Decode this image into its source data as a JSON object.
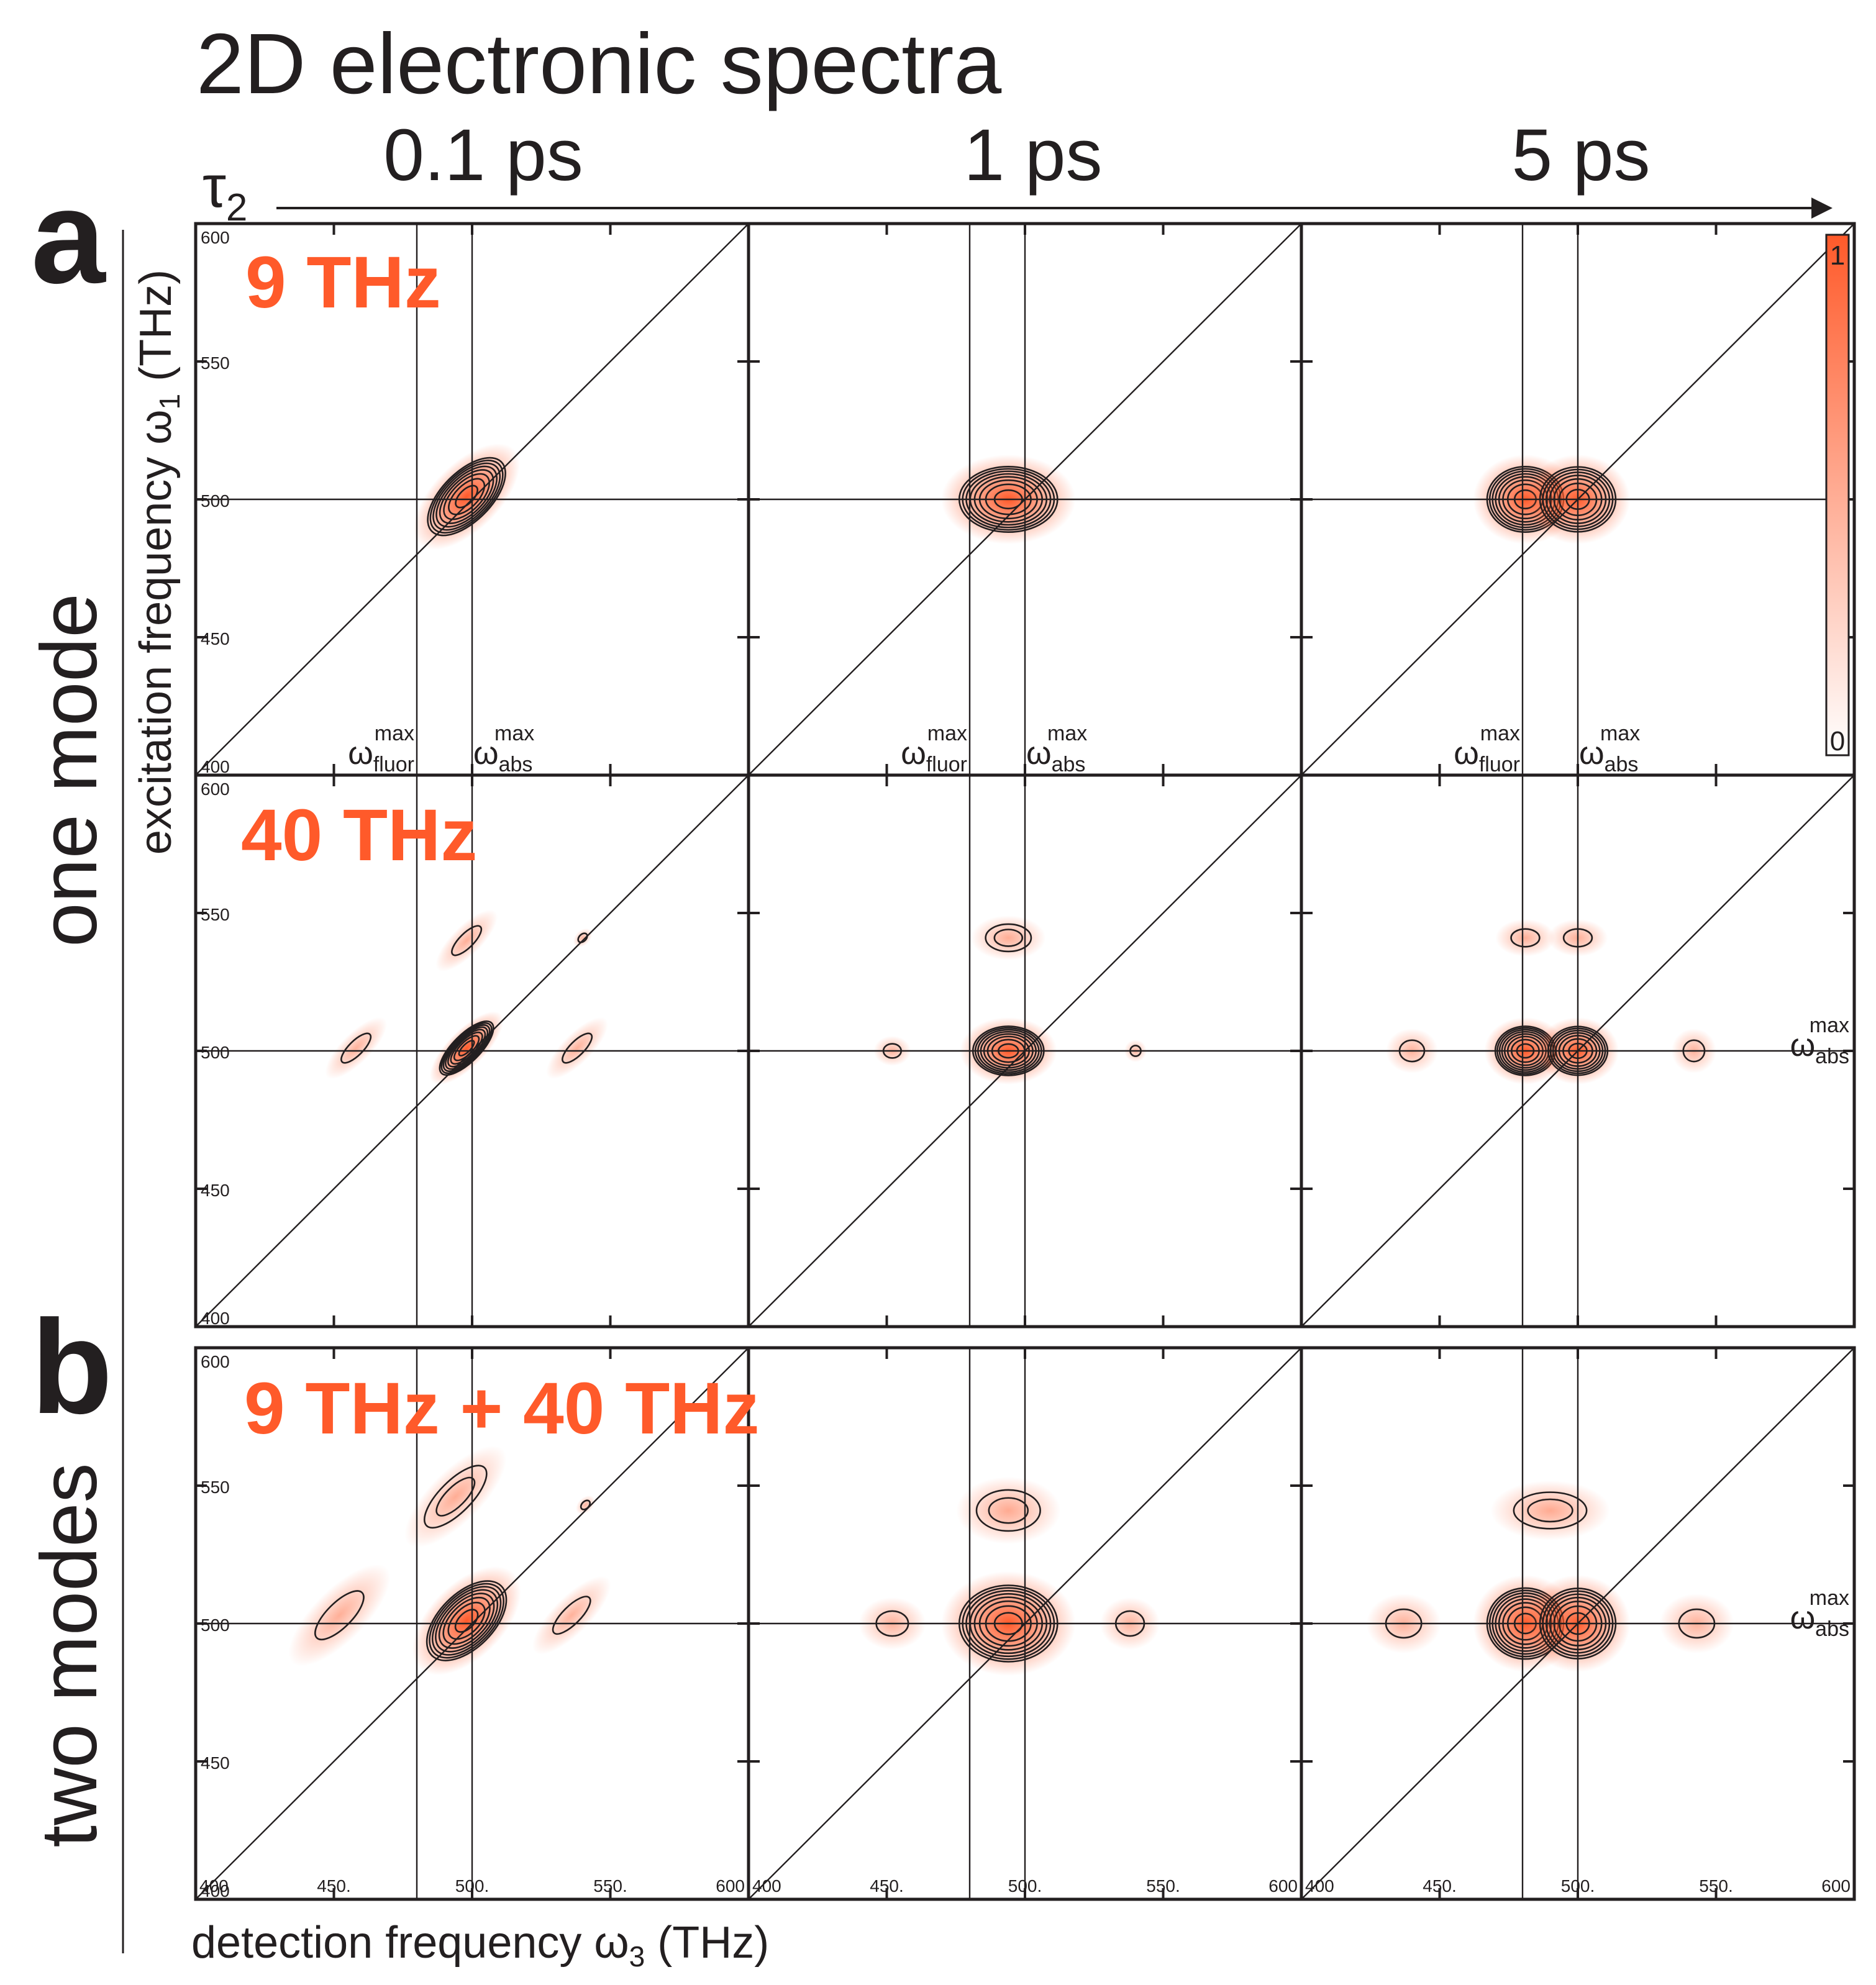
{
  "title": "2D electronic spectra",
  "tau_label": "τ",
  "tau_subscript": "2",
  "columns": [
    "0.1 ps",
    "1 ps",
    "5 ps"
  ],
  "panel_letters": [
    "a",
    "b"
  ],
  "row_group_labels": [
    "one mode",
    "two modes"
  ],
  "colorbar": {
    "max_label": "1",
    "min_label": "0",
    "color": "#ff5a2a"
  },
  "colors": {
    "peak": "#ff5a2a",
    "overlay_text": "#ff5a2a",
    "ink": "#231f20"
  },
  "markers": {
    "omega": "ω",
    "fluor_sub": "fluor",
    "abs_sub": "abs",
    "max_sup": "max"
  },
  "axis": {
    "y_label_main": "excitation frequency ω",
    "y_label_sub": "1",
    "y_label_unit": " (THz)",
    "x_label_main": "detection frequency ω",
    "x_label_sub": "3",
    "x_label_unit": "  (THz)"
  },
  "chart_data": {
    "type": "heatmap",
    "title": "2D electronic spectra",
    "xlabel": "detection frequency ω3 (THz)",
    "ylabel": "excitation frequency ω1 (THz)",
    "xlim": [
      400,
      600
    ],
    "ylim": [
      400,
      600
    ],
    "x_ticks": [
      400,
      450,
      500,
      550,
      600
    ],
    "y_ticks": [
      400,
      450,
      500,
      550,
      600
    ],
    "x_tick_labels": [
      "400",
      "450.",
      "500.",
      "550.",
      "600"
    ],
    "y_tick_labels": [
      "400",
      "450",
      "500",
      "550",
      "600"
    ],
    "colorbar_range": [
      0,
      1
    ],
    "omega_abs_max": 500,
    "omega_fluor_max": 480,
    "rows": [
      {
        "label": "9 THz",
        "group": "one mode",
        "panels": [
          {
            "tau2": "0.1 ps",
            "peaks": [
              {
                "x": 498,
                "y": 501,
                "sx": 18,
                "sy": 9,
                "rot": 45,
                "amp": 1.0
              }
            ]
          },
          {
            "tau2": "1 ps",
            "peaks": [
              {
                "x": 494,
                "y": 500,
                "sx": 18,
                "sy": 12,
                "rot": 0,
                "amp": 1.0
              }
            ]
          },
          {
            "tau2": "5 ps",
            "peaks": [
              {
                "x": 481,
                "y": 500,
                "sx": 14,
                "sy": 12,
                "rot": 0,
                "amp": 0.95
              },
              {
                "x": 500,
                "y": 500,
                "sx": 14,
                "sy": 12,
                "rot": 0,
                "amp": 0.85
              }
            ]
          }
        ]
      },
      {
        "label": "40 THz",
        "group": "one mode",
        "panels": [
          {
            "tau2": "0.1 ps",
            "peaks": [
              {
                "x": 498,
                "y": 501,
                "sx": 13,
                "sy": 5,
                "rot": 45,
                "amp": 1.0
              },
              {
                "x": 498,
                "y": 540,
                "sx": 11,
                "sy": 4,
                "rot": 45,
                "amp": 0.18
              },
              {
                "x": 458,
                "y": 501,
                "sx": 11,
                "sy": 4,
                "rot": 45,
                "amp": 0.16
              },
              {
                "x": 538,
                "y": 501,
                "sx": 11,
                "sy": 4,
                "rot": 45,
                "amp": 0.16
              },
              {
                "x": 540,
                "y": 541,
                "sx": 3,
                "sy": 2,
                "rot": 45,
                "amp": 0.12
              }
            ]
          },
          {
            "tau2": "1 ps",
            "peaks": [
              {
                "x": 494,
                "y": 500,
                "sx": 13,
                "sy": 9,
                "rot": 0,
                "amp": 1.0
              },
              {
                "x": 494,
                "y": 541,
                "sx": 10,
                "sy": 6,
                "rot": 0,
                "amp": 0.2
              },
              {
                "x": 452,
                "y": 500,
                "sx": 5,
                "sy": 4,
                "rot": 0,
                "amp": 0.15
              },
              {
                "x": 540,
                "y": 500,
                "sx": 3,
                "sy": 3,
                "rot": 0,
                "amp": 0.12
              }
            ]
          },
          {
            "tau2": "5 ps",
            "peaks": [
              {
                "x": 481,
                "y": 500,
                "sx": 11,
                "sy": 9,
                "rot": 0,
                "amp": 0.95
              },
              {
                "x": 500,
                "y": 500,
                "sx": 11,
                "sy": 9,
                "rot": 0,
                "amp": 0.85
              },
              {
                "x": 481,
                "y": 541,
                "sx": 8,
                "sy": 5,
                "rot": 0,
                "amp": 0.18
              },
              {
                "x": 500,
                "y": 541,
                "sx": 8,
                "sy": 5,
                "rot": 0,
                "amp": 0.18
              },
              {
                "x": 440,
                "y": 500,
                "sx": 7,
                "sy": 6,
                "rot": 0,
                "amp": 0.15
              },
              {
                "x": 542,
                "y": 500,
                "sx": 6,
                "sy": 6,
                "rot": 0,
                "amp": 0.15
              }
            ]
          }
        ]
      },
      {
        "label": "9 THz + 40 THz",
        "group": "two modes",
        "panels": [
          {
            "tau2": "0.1 ps",
            "peaks": [
              {
                "x": 498,
                "y": 501,
                "sx": 18,
                "sy": 10,
                "rot": 45,
                "amp": 1.0
              },
              {
                "x": 494,
                "y": 546,
                "sx": 18,
                "sy": 7,
                "rot": 45,
                "amp": 0.2
              },
              {
                "x": 452,
                "y": 503,
                "sx": 18,
                "sy": 7,
                "rot": 45,
                "amp": 0.18
              },
              {
                "x": 536,
                "y": 503,
                "sx": 14,
                "sy": 5,
                "rot": 45,
                "amp": 0.16
              },
              {
                "x": 541,
                "y": 543,
                "sx": 3,
                "sy": 2,
                "rot": 45,
                "amp": 0.12
              }
            ]
          },
          {
            "tau2": "1 ps",
            "peaks": [
              {
                "x": 494,
                "y": 500,
                "sx": 18,
                "sy": 14,
                "rot": 0,
                "amp": 1.0
              },
              {
                "x": 494,
                "y": 541,
                "sx": 14,
                "sy": 9,
                "rot": 0,
                "amp": 0.22
              },
              {
                "x": 452,
                "y": 500,
                "sx": 9,
                "sy": 7,
                "rot": 0,
                "amp": 0.16
              },
              {
                "x": 538,
                "y": 500,
                "sx": 8,
                "sy": 7,
                "rot": 0,
                "amp": 0.14
              }
            ]
          },
          {
            "tau2": "5 ps",
            "peaks": [
              {
                "x": 481,
                "y": 500,
                "sx": 14,
                "sy": 13,
                "rot": 0,
                "amp": 0.95
              },
              {
                "x": 500,
                "y": 500,
                "sx": 14,
                "sy": 13,
                "rot": 0,
                "amp": 0.85
              },
              {
                "x": 490,
                "y": 541,
                "sx": 16,
                "sy": 8,
                "rot": 0,
                "amp": 0.22
              },
              {
                "x": 437,
                "y": 500,
                "sx": 10,
                "sy": 8,
                "rot": 0,
                "amp": 0.16
              },
              {
                "x": 543,
                "y": 500,
                "sx": 10,
                "sy": 8,
                "rot": 0,
                "amp": 0.16
              }
            ]
          }
        ]
      }
    ]
  }
}
